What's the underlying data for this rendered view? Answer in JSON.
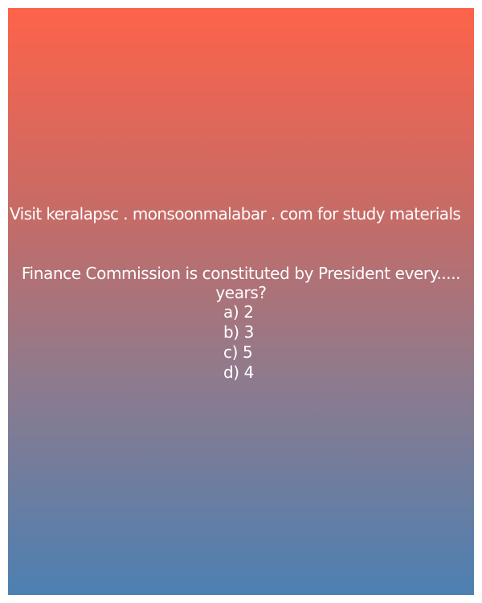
{
  "promo": {
    "text": "Visit keralapsc . monsoonmalabar . com for study materials"
  },
  "quiz": {
    "question": "Finance Commission is constituted by President every..... years?",
    "options": [
      "a) 2",
      "b) 3",
      "c) 5",
      "d) 4"
    ]
  },
  "colors": {
    "gradient_top": "#fd634a",
    "gradient_bottom": "#4c80b2",
    "text": "#ffffff"
  }
}
